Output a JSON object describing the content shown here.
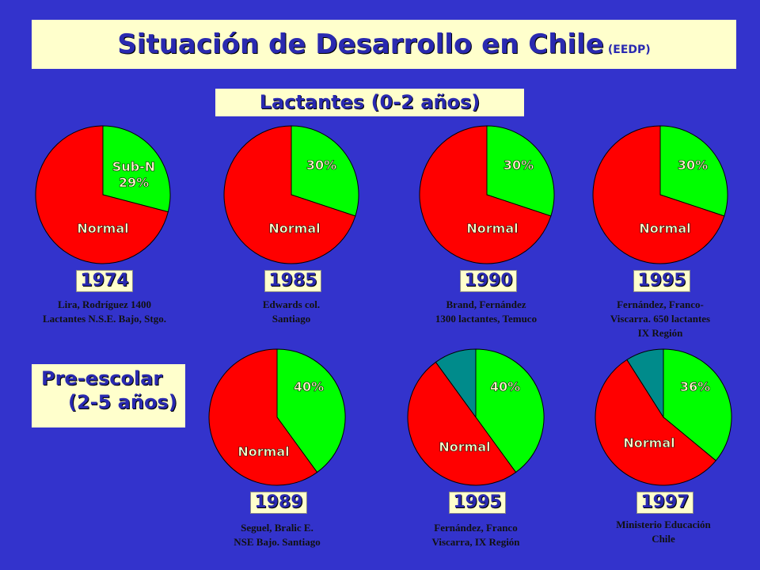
{
  "header": {
    "title": "Situación de Desarrollo en Chile",
    "title_note": "(EEDP)"
  },
  "section_infants": "Lactantes (0-2 años)",
  "section_preschool": {
    "line1": "Pre-escolar",
    "line2": "(2-5 años)"
  },
  "colors": {
    "normal": "#ff0000",
    "sub_normal": "#00ff00",
    "third_segment": "#008b8b",
    "background": "#3333cc",
    "label_box": "#ffffcc"
  },
  "chart_data": [
    {
      "type": "pie",
      "year": "1974",
      "group": "Lactantes",
      "slices": [
        {
          "label": "Sub-N 29%",
          "value": 29
        },
        {
          "label": "Normal",
          "value": 71
        }
      ],
      "source": [
        "Lira, Rodríguez 1400",
        "Lactantes N.S.E. Bajo, Stgo."
      ]
    },
    {
      "type": "pie",
      "year": "1985",
      "group": "Lactantes",
      "slices": [
        {
          "label": "30%",
          "value": 30
        },
        {
          "label": "Normal",
          "value": 70
        }
      ],
      "source": [
        "Edwards col.",
        "Santiago"
      ]
    },
    {
      "type": "pie",
      "year": "1990",
      "group": "Lactantes",
      "slices": [
        {
          "label": "30%",
          "value": 30
        },
        {
          "label": "Normal",
          "value": 70
        }
      ],
      "source": [
        "Brand, Fernández",
        "1300 lactantes, Temuco"
      ]
    },
    {
      "type": "pie",
      "year": "1995",
      "group": "Lactantes",
      "slices": [
        {
          "label": "30%",
          "value": 30
        },
        {
          "label": "Normal",
          "value": 70
        }
      ],
      "source": [
        "Fernández, Franco-",
        "Viscarra. 650 lactantes",
        "IX Región"
      ]
    },
    {
      "type": "pie",
      "year": "1989",
      "group": "Pre-escolar",
      "slices": [
        {
          "label": "40%",
          "value": 40
        },
        {
          "label": "Normal",
          "value": 60
        }
      ],
      "source": [
        "Seguel, Bralic E.",
        "NSE Bajo. Santiago"
      ]
    },
    {
      "type": "pie",
      "year": "1995",
      "group": "Pre-escolar",
      "slices": [
        {
          "label": "40%",
          "value": 40
        },
        {
          "label": "Normal",
          "value": 50
        },
        {
          "label": "",
          "value": 10
        }
      ],
      "source": [
        "Fernández, Franco",
        "Viscarra, IX Región"
      ]
    },
    {
      "type": "pie",
      "year": "1997",
      "group": "Pre-escolar",
      "slices": [
        {
          "label": "36%",
          "value": 36
        },
        {
          "label": "Normal",
          "value": 55
        },
        {
          "label": "",
          "value": 9
        }
      ],
      "source": [
        "Ministerio Educación",
        "Chile"
      ]
    }
  ]
}
